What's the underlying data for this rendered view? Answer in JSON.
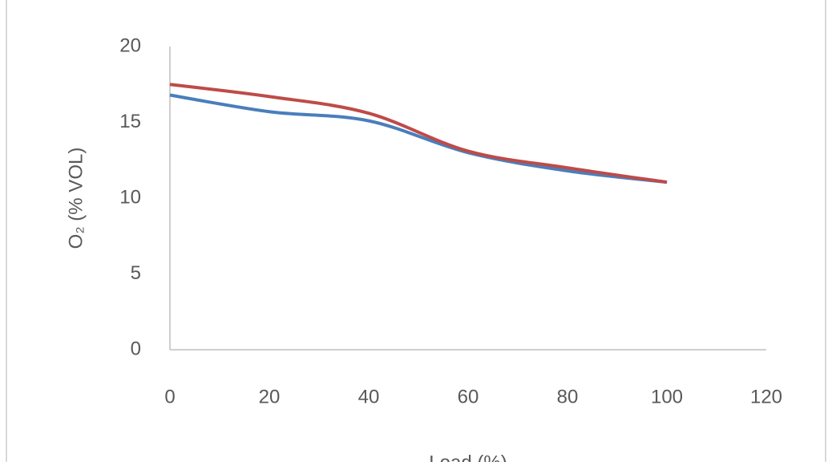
{
  "chart_data": {
    "type": "line",
    "x_label": "Load (%)",
    "y_label": "O₂ (% VOL)",
    "x": [
      0,
      20,
      40,
      60,
      80,
      100
    ],
    "series": [
      {
        "color": "#4a7ebb",
        "values": [
          16.8,
          15.7,
          15.1,
          13.0,
          11.8,
          11.05
        ]
      },
      {
        "color": "#be4b48",
        "values": [
          17.5,
          16.7,
          15.6,
          13.1,
          12.0,
          11.05
        ]
      }
    ],
    "xlim": [
      0,
      120
    ],
    "xticks": [
      0,
      20,
      40,
      60,
      80,
      100,
      120
    ],
    "ylim": [
      0,
      20
    ],
    "yticks": [
      0,
      5,
      10,
      15,
      20
    ],
    "grid": false
  }
}
